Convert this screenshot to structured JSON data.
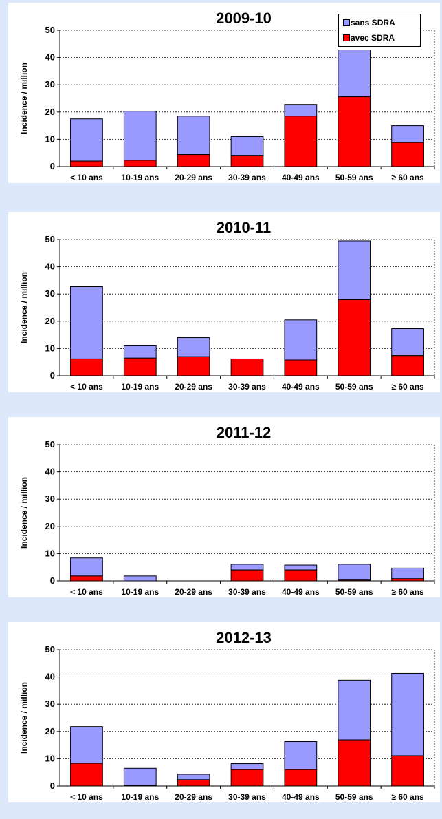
{
  "colors": {
    "sans_sdra": "#9999ff",
    "avec_sdra": "#ff0000"
  },
  "legend": {
    "items": [
      {
        "label": "sans SDRA",
        "color": "#9999ff"
      },
      {
        "label": "avec SDRA",
        "color": "#ff0000"
      }
    ]
  },
  "chart_data": [
    {
      "type": "bar",
      "stacked": true,
      "title": "2009-10",
      "ylabel": "Incidence / million",
      "ylim": [
        0,
        50
      ],
      "yticks": [
        0,
        10,
        20,
        30,
        40,
        50
      ],
      "grid": true,
      "categories": [
        "< 10 ans",
        "10-19 ans",
        "20-29 ans",
        "30-39 ans",
        "40-49 ans",
        "50-59 ans",
        "≥ 60 ans"
      ],
      "series": [
        {
          "name": "avec SDRA",
          "values": [
            2.0,
            2.3,
            4.4,
            4.1,
            18.5,
            25.6,
            8.8
          ]
        },
        {
          "name": "sans SDRA",
          "values": [
            15.5,
            18.0,
            14.1,
            6.9,
            4.3,
            17.2,
            6.2
          ]
        }
      ]
    },
    {
      "type": "bar",
      "stacked": true,
      "title": "2010-11",
      "ylabel": "Incidence / million",
      "ylim": [
        0,
        50
      ],
      "yticks": [
        0,
        10,
        20,
        30,
        40,
        50
      ],
      "grid": true,
      "categories": [
        "< 10 ans",
        "10-19 ans",
        "20-29 ans",
        "30-39 ans",
        "40-49 ans",
        "50-59 ans",
        "≥ 60 ans"
      ],
      "series": [
        {
          "name": "avec SDRA",
          "values": [
            6.2,
            6.5,
            7.0,
            6.2,
            5.8,
            27.9,
            7.4
          ]
        },
        {
          "name": "sans SDRA",
          "values": [
            26.5,
            4.5,
            7.0,
            0.0,
            14.7,
            21.6,
            9.9
          ]
        }
      ]
    },
    {
      "type": "bar",
      "stacked": true,
      "title": "2011-12",
      "ylabel": "Incidence / million",
      "ylim": [
        0,
        50
      ],
      "yticks": [
        0,
        10,
        20,
        30,
        40,
        50
      ],
      "grid": true,
      "categories": [
        "< 10 ans",
        "10-19 ans",
        "20-29 ans",
        "30-39 ans",
        "40-49 ans",
        "50-59 ans",
        "≥ 60 ans"
      ],
      "series": [
        {
          "name": "avec SDRA",
          "values": [
            1.8,
            0.0,
            0.0,
            4.0,
            4.0,
            0.3,
            0.8
          ]
        },
        {
          "name": "sans SDRA",
          "values": [
            6.6,
            1.8,
            0.0,
            2.1,
            1.8,
            5.8,
            3.9
          ]
        }
      ]
    },
    {
      "type": "bar",
      "stacked": true,
      "title": "2012-13",
      "ylabel": "Incidence / million",
      "ylim": [
        0,
        50
      ],
      "yticks": [
        0,
        10,
        20,
        30,
        40,
        50
      ],
      "grid": true,
      "categories": [
        "< 10 ans",
        "10-19 ans",
        "20-29 ans",
        "30-39 ans",
        "40-49 ans",
        "50-59 ans",
        "≥ 60 ans"
      ],
      "series": [
        {
          "name": "avec SDRA",
          "values": [
            8.3,
            0.2,
            2.3,
            6.0,
            6.0,
            16.9,
            11.1
          ]
        },
        {
          "name": "sans SDRA",
          "values": [
            13.5,
            6.3,
            2.0,
            2.2,
            10.3,
            21.9,
            30.2
          ]
        }
      ]
    }
  ]
}
